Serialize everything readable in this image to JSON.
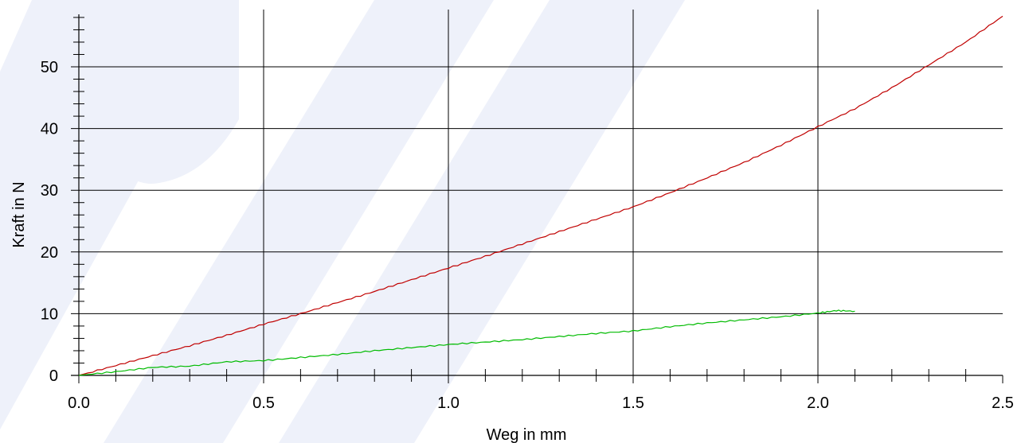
{
  "chart_data": {
    "type": "line",
    "xlabel": "Weg in mm",
    "ylabel": "Kraft in N",
    "xlim": [
      0,
      2.5
    ],
    "ylim": [
      0,
      60
    ],
    "x_ticks": [
      "0.0",
      "0.5",
      "1.0",
      "1.5",
      "2.0",
      "2.5"
    ],
    "y_ticks": [
      "0",
      "10",
      "20",
      "30",
      "40",
      "50"
    ],
    "grid": true,
    "series": [
      {
        "color": "#c00000",
        "x": [
          0.0,
          0.1,
          0.2,
          0.3,
          0.4,
          0.5,
          0.6,
          0.7,
          0.8,
          0.9,
          1.0,
          1.1,
          1.2,
          1.3,
          1.4,
          1.5,
          1.6,
          1.7,
          1.8,
          1.9,
          2.0,
          2.1,
          2.2,
          2.3,
          2.4,
          2.5
        ],
        "y": [
          0.0,
          1.6,
          3.2,
          4.8,
          6.5,
          8.3,
          10.0,
          11.8,
          13.6,
          15.5,
          17.4,
          19.3,
          21.3,
          23.3,
          25.3,
          27.3,
          29.6,
          32.0,
          34.5,
          37.3,
          40.3,
          43.2,
          46.6,
          50.3,
          54.0,
          58.2
        ]
      },
      {
        "color": "#00bb00",
        "x": [
          0.0,
          0.1,
          0.2,
          0.3,
          0.4,
          0.5,
          0.6,
          0.7,
          0.8,
          0.9,
          1.0,
          1.1,
          1.2,
          1.3,
          1.4,
          1.5,
          1.6,
          1.7,
          1.8,
          1.9,
          2.0,
          2.05,
          2.1
        ],
        "y": [
          0.0,
          0.6,
          1.3,
          1.5,
          2.2,
          2.4,
          2.9,
          3.4,
          4.0,
          4.5,
          5.0,
          5.4,
          5.8,
          6.3,
          6.8,
          7.2,
          7.9,
          8.5,
          9.0,
          9.5,
          10.1,
          10.5,
          10.4
        ]
      }
    ]
  },
  "colors": {
    "grid": "#000000",
    "watermark": "#eef1fa"
  }
}
